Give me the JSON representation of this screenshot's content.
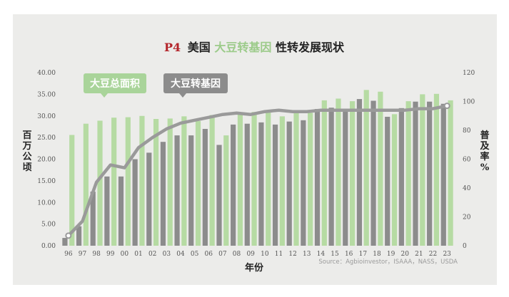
{
  "title": {
    "prefix": "P4",
    "part1": "美国",
    "part2": "大豆转基因",
    "part3": "性转发展现状",
    "prefix_color": "#b3242a",
    "highlight_color": "#9ccb8a"
  },
  "legend_callouts": {
    "total_area": "大豆总面积",
    "gm": "大豆转基因"
  },
  "source": "Source：Agbioinvestor，ISAAA，NASS，USDA",
  "colors": {
    "total_area_bar": "#b6dba3",
    "gm_bar": "#8c8c8c",
    "line": "#9a9a9a",
    "callout_green": "#a9d49a",
    "callout_gray": "#8c8c8c"
  },
  "chart_data": {
    "type": "bar",
    "xlabel": "年份",
    "ylabel_left": "百万公顷",
    "ylabel_right": "普及率%",
    "categories": [
      "96",
      "97",
      "98",
      "99",
      "00",
      "01",
      "02",
      "03",
      "04",
      "05",
      "06",
      "07",
      "08",
      "09",
      "10",
      "11",
      "12",
      "13",
      "14",
      "15",
      "16",
      "17",
      "18",
      "19",
      "20",
      "21",
      "22",
      "23"
    ],
    "y_left": {
      "min": 0,
      "max": 40,
      "step": 5,
      "tick_labels": [
        "0.00",
        "5.00",
        "10.00",
        "15.00",
        "20.00",
        "25.00",
        "30.00",
        "35.00",
        "40.00"
      ]
    },
    "y_right": {
      "min": 0,
      "max": 120,
      "step": 20,
      "tick_labels": [
        "0",
        "20",
        "40",
        "60",
        "80",
        "100",
        "120"
      ]
    },
    "series": [
      {
        "name": "大豆总面积",
        "kind": "bar",
        "axis": "left",
        "values": [
          25.6,
          28.2,
          28.9,
          29.6,
          29.7,
          30.0,
          29.3,
          29.4,
          29.9,
          28.8,
          30.2,
          25.5,
          30.3,
          30.9,
          31.0,
          29.9,
          30.8,
          30.7,
          33.6,
          34.0,
          33.4,
          36.0,
          35.6,
          30.4,
          33.4,
          35.0,
          35.1,
          33.6
        ]
      },
      {
        "name": "大豆转基因",
        "kind": "bar",
        "axis": "left",
        "values": [
          1.8,
          4.5,
          12.5,
          16.0,
          16.0,
          20.0,
          21.5,
          24.0,
          25.5,
          25.5,
          27.0,
          23.3,
          28.0,
          28.2,
          28.5,
          28.0,
          28.7,
          29.0,
          31.6,
          31.9,
          31.6,
          33.9,
          33.5,
          29.8,
          31.8,
          33.3,
          33.3,
          32.8
        ]
      },
      {
        "name": "",
        "kind": "line",
        "axis": "right",
        "values": [
          7,
          17,
          44,
          56,
          54,
          68,
          75,
          81,
          85,
          87,
          89,
          91,
          92,
          91,
          93,
          94,
          93,
          93,
          94,
          94,
          94,
          94,
          94,
          94,
          94,
          95,
          95,
          97
        ]
      }
    ],
    "grid": false
  }
}
